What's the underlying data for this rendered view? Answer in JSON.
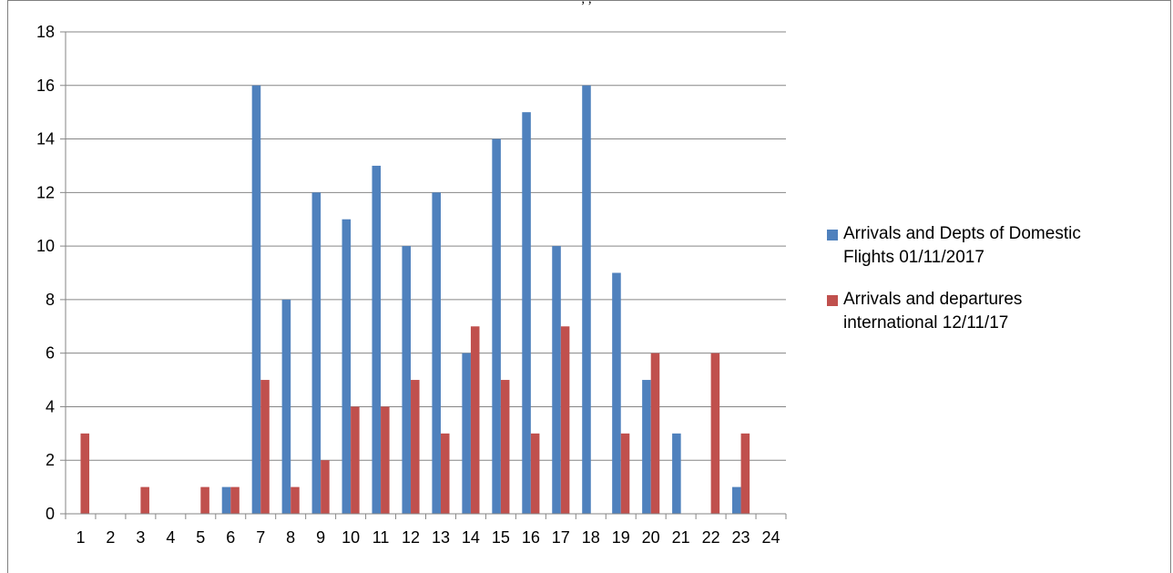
{
  "header_fragment": ", ,",
  "chart_data": {
    "type": "bar",
    "title": "",
    "xlabel": "",
    "ylabel": "",
    "categories": [
      "1",
      "2",
      "3",
      "4",
      "5",
      "6",
      "7",
      "8",
      "9",
      "10",
      "11",
      "12",
      "13",
      "14",
      "15",
      "16",
      "17",
      "18",
      "19",
      "20",
      "21",
      "22",
      "23",
      "24"
    ],
    "ylim": [
      0,
      18
    ],
    "yticks": [
      "0",
      "2",
      "4",
      "6",
      "8",
      "10",
      "12",
      "14",
      "16",
      "18"
    ],
    "grid": "horizontal",
    "legend_position": "right",
    "series": [
      {
        "name": "Arrivals and Depts of Domestic Flights 01/11/2017",
        "name_lines": [
          "Arrivals and Depts of Domestic",
          "Flights 01/11/2017"
        ],
        "color": "#4f81bd",
        "values": [
          0,
          0,
          0,
          0,
          0,
          1,
          16,
          8,
          12,
          11,
          13,
          10,
          12,
          6,
          14,
          15,
          10,
          16,
          9,
          5,
          3,
          0,
          1,
          0
        ]
      },
      {
        "name": "Arrivals and departures international 12/11/17",
        "name_lines": [
          "Arrivals and departures",
          "international 12/11/17"
        ],
        "color": "#c0504d",
        "values": [
          3,
          0,
          1,
          0,
          1,
          1,
          5,
          1,
          2,
          4,
          4,
          5,
          3,
          7,
          5,
          3,
          7,
          0,
          3,
          6,
          0,
          6,
          3,
          0
        ]
      }
    ]
  }
}
